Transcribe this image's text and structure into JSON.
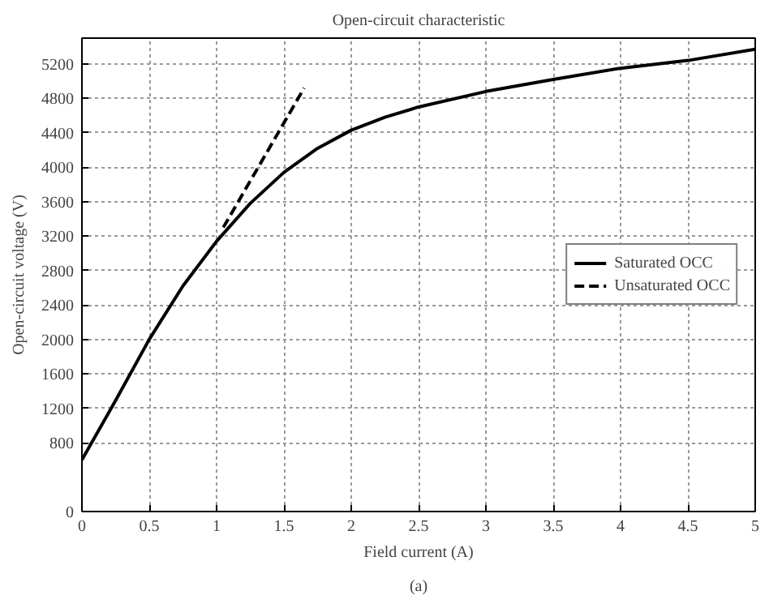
{
  "chart_data": {
    "type": "line",
    "title": "Open-circuit characteristic",
    "xlabel": "Field current (A)",
    "ylabel": "Open-circuit voltage (V)",
    "annotations": [
      "(a)"
    ],
    "xlim": [
      0,
      5
    ],
    "ylim": [
      0,
      5500
    ],
    "xticks": [
      0,
      0.5,
      1,
      1.5,
      2,
      2.5,
      3,
      3.5,
      4,
      4.5,
      5
    ],
    "yticks": [
      0,
      800,
      1200,
      1600,
      2000,
      2400,
      2800,
      3200,
      3600,
      4000,
      4400,
      4800,
      5200
    ],
    "grid": true,
    "legend": "right",
    "series": [
      {
        "name": "Saturated OCC",
        "color": "#000000",
        "line_style": "solid",
        "x": [
          0,
          0.25,
          0.5,
          0.75,
          1,
          1.25,
          1.5,
          1.75,
          2,
          2.25,
          2.5,
          3,
          3.5,
          4,
          4.5,
          5
        ],
        "values": [
          600,
          1290,
          2000,
          2620,
          3140,
          3580,
          3940,
          4220,
          4430,
          4580,
          4700,
          4880,
          5020,
          5150,
          5240,
          5370
        ]
      },
      {
        "name": "Unsaturated OCC",
        "color": "#000000",
        "line_style": "dashed",
        "x": [
          1.05,
          1.65
        ],
        "values": [
          3300,
          4920
        ]
      }
    ]
  }
}
